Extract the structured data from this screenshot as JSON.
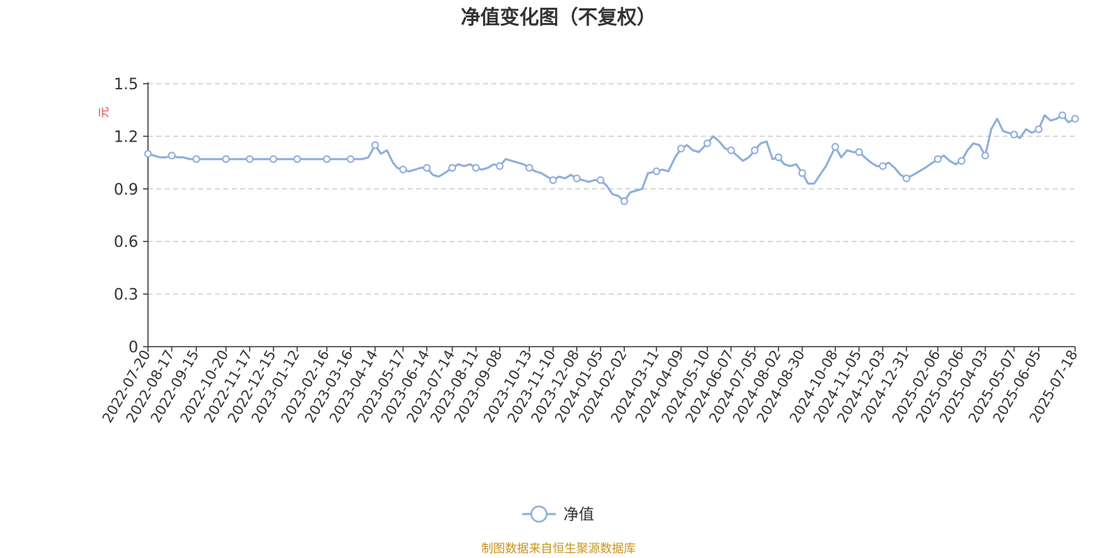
{
  "chart_data": {
    "type": "line",
    "title": "净值变化图（不复权）",
    "ylabel": "元",
    "ylim": [
      0,
      1.5
    ],
    "yticks": [
      0,
      0.3,
      0.6,
      0.9,
      1.2,
      1.5
    ],
    "ytick_labels": [
      "0",
      "0.3",
      "0.6",
      "0.9",
      "1.2",
      "1.5"
    ],
    "grid": true,
    "legend_position": "bottom-center",
    "source": "制图数据来自恒生聚源数据库",
    "colors": {
      "line": "#8eafdb",
      "title": "#333333",
      "unit": "#e8413d",
      "source": "#c8941e",
      "grid": "#cccccc",
      "axis": "#333333"
    },
    "x_tick_labels": [
      "2022-07-20",
      "2022-08-17",
      "2022-09-15",
      "2022-10-20",
      "2022-11-17",
      "2022-12-15",
      "2023-01-12",
      "2023-02-16",
      "2023-03-16",
      "2023-04-14",
      "2023-05-17",
      "2023-06-14",
      "2023-07-14",
      "2023-08-11",
      "2023-09-08",
      "2023-10-13",
      "2023-11-10",
      "2023-12-08",
      "2024-01-05",
      "2024-02-02",
      "2024-03-11",
      "2024-04-09",
      "2024-05-10",
      "2024-06-07",
      "2024-07-05",
      "2024-08-02",
      "2024-08-30",
      "2024-10-08",
      "2024-11-05",
      "2024-12-03",
      "2024-12-31",
      "2025-02-06",
      "2025-03-06",
      "2025-04-03",
      "2025-05-07",
      "2025-06-05",
      "2025-07-18"
    ],
    "series": [
      {
        "name": "净值",
        "x": [
          "2022-07-20",
          "2022-07-27",
          "2022-08-03",
          "2022-08-10",
          "2022-08-17",
          "2022-08-24",
          "2022-08-31",
          "2022-09-07",
          "2022-09-15",
          "2022-09-22",
          "2022-09-29",
          "2022-10-13",
          "2022-10-20",
          "2022-10-27",
          "2022-11-03",
          "2022-11-10",
          "2022-11-17",
          "2022-11-24",
          "2022-12-01",
          "2022-12-08",
          "2022-12-15",
          "2022-12-22",
          "2022-12-29",
          "2023-01-05",
          "2023-01-12",
          "2023-01-19",
          "2023-02-02",
          "2023-02-09",
          "2023-02-16",
          "2023-02-23",
          "2023-03-02",
          "2023-03-09",
          "2023-03-16",
          "2023-03-23",
          "2023-03-30",
          "2023-04-06",
          "2023-04-14",
          "2023-04-21",
          "2023-04-28",
          "2023-05-05",
          "2023-05-10",
          "2023-05-17",
          "2023-05-24",
          "2023-05-31",
          "2023-06-07",
          "2023-06-14",
          "2023-06-21",
          "2023-06-28",
          "2023-07-05",
          "2023-07-14",
          "2023-07-21",
          "2023-07-28",
          "2023-08-04",
          "2023-08-11",
          "2023-08-18",
          "2023-08-25",
          "2023-09-01",
          "2023-09-08",
          "2023-09-15",
          "2023-09-22",
          "2023-10-06",
          "2023-10-13",
          "2023-10-20",
          "2023-10-27",
          "2023-11-03",
          "2023-11-10",
          "2023-11-17",
          "2023-11-24",
          "2023-12-01",
          "2023-12-08",
          "2023-12-15",
          "2023-12-22",
          "2023-12-29",
          "2024-01-05",
          "2024-01-12",
          "2024-01-19",
          "2024-01-26",
          "2024-02-02",
          "2024-02-09",
          "2024-02-23",
          "2024-03-01",
          "2024-03-11",
          "2024-03-18",
          "2024-03-25",
          "2024-04-02",
          "2024-04-09",
          "2024-04-16",
          "2024-04-23",
          "2024-04-30",
          "2024-05-10",
          "2024-05-17",
          "2024-05-24",
          "2024-05-31",
          "2024-06-07",
          "2024-06-14",
          "2024-06-21",
          "2024-06-28",
          "2024-07-05",
          "2024-07-12",
          "2024-07-19",
          "2024-07-26",
          "2024-08-02",
          "2024-08-09",
          "2024-08-16",
          "2024-08-23",
          "2024-08-30",
          "2024-09-06",
          "2024-09-13",
          "2024-09-20",
          "2024-09-27",
          "2024-10-08",
          "2024-10-15",
          "2024-10-22",
          "2024-10-29",
          "2024-11-05",
          "2024-11-12",
          "2024-11-19",
          "2024-11-26",
          "2024-12-03",
          "2024-12-10",
          "2024-12-17",
          "2024-12-24",
          "2024-12-31",
          "2025-01-08",
          "2025-01-15",
          "2025-01-22",
          "2025-02-06",
          "2025-02-13",
          "2025-02-20",
          "2025-02-27",
          "2025-03-06",
          "2025-03-13",
          "2025-03-20",
          "2025-03-27",
          "2025-04-03",
          "2025-04-10",
          "2025-04-17",
          "2025-04-24",
          "2025-05-07",
          "2025-05-14",
          "2025-05-21",
          "2025-05-28",
          "2025-06-05",
          "2025-06-12",
          "2025-06-19",
          "2025-06-26",
          "2025-07-03",
          "2025-07-10",
          "2025-07-18"
        ],
        "y": [
          1.1,
          1.09,
          1.08,
          1.08,
          1.09,
          1.08,
          1.08,
          1.07,
          1.07,
          1.07,
          1.07,
          1.07,
          1.07,
          1.07,
          1.07,
          1.07,
          1.07,
          1.07,
          1.07,
          1.07,
          1.07,
          1.07,
          1.07,
          1.07,
          1.07,
          1.07,
          1.07,
          1.07,
          1.07,
          1.07,
          1.07,
          1.07,
          1.07,
          1.07,
          1.07,
          1.08,
          1.15,
          1.1,
          1.12,
          1.05,
          1.02,
          1.01,
          1.0,
          1.01,
          1.02,
          1.02,
          0.98,
          0.97,
          0.99,
          1.02,
          1.04,
          1.03,
          1.04,
          1.02,
          1.01,
          1.02,
          1.04,
          1.03,
          1.07,
          1.06,
          1.04,
          1.02,
          1.0,
          0.99,
          0.97,
          0.95,
          0.97,
          0.96,
          0.98,
          0.96,
          0.95,
          0.94,
          0.95,
          0.95,
          0.92,
          0.87,
          0.86,
          0.83,
          0.88,
          0.9,
          0.99,
          1.0,
          1.01,
          1.0,
          1.08,
          1.13,
          1.15,
          1.12,
          1.11,
          1.16,
          1.2,
          1.17,
          1.13,
          1.12,
          1.09,
          1.06,
          1.08,
          1.12,
          1.16,
          1.17,
          1.07,
          1.08,
          1.04,
          1.03,
          1.04,
          0.99,
          0.93,
          0.93,
          0.98,
          1.03,
          1.14,
          1.08,
          1.12,
          1.11,
          1.11,
          1.08,
          1.05,
          1.03,
          1.03,
          1.05,
          1.02,
          0.98,
          0.96,
          0.98,
          1.0,
          1.02,
          1.07,
          1.09,
          1.06,
          1.04,
          1.06,
          1.12,
          1.16,
          1.15,
          1.09,
          1.24,
          1.3,
          1.23,
          1.21,
          1.19,
          1.24,
          1.22,
          1.24,
          1.32,
          1.29,
          1.3,
          1.32,
          1.28,
          1.3
        ],
        "markers": [
          "2022-07-20",
          "2022-08-17",
          "2022-09-15",
          "2022-10-20",
          "2022-11-17",
          "2022-12-15",
          "2023-01-12",
          "2023-02-16",
          "2023-03-16",
          "2023-04-14",
          "2023-05-17",
          "2023-06-14",
          "2023-07-14",
          "2023-08-11",
          "2023-09-08",
          "2023-10-13",
          "2023-11-10",
          "2023-12-08",
          "2024-01-05",
          "2024-02-02",
          "2024-03-11",
          "2024-04-09",
          "2024-05-10",
          "2024-06-07",
          "2024-07-05",
          "2024-08-02",
          "2024-08-30",
          "2024-10-08",
          "2024-11-05",
          "2024-12-03",
          "2024-12-31",
          "2025-02-06",
          "2025-03-06",
          "2025-04-03",
          "2025-05-07",
          "2025-06-05",
          "2025-07-03",
          "2025-07-18"
        ]
      }
    ]
  }
}
